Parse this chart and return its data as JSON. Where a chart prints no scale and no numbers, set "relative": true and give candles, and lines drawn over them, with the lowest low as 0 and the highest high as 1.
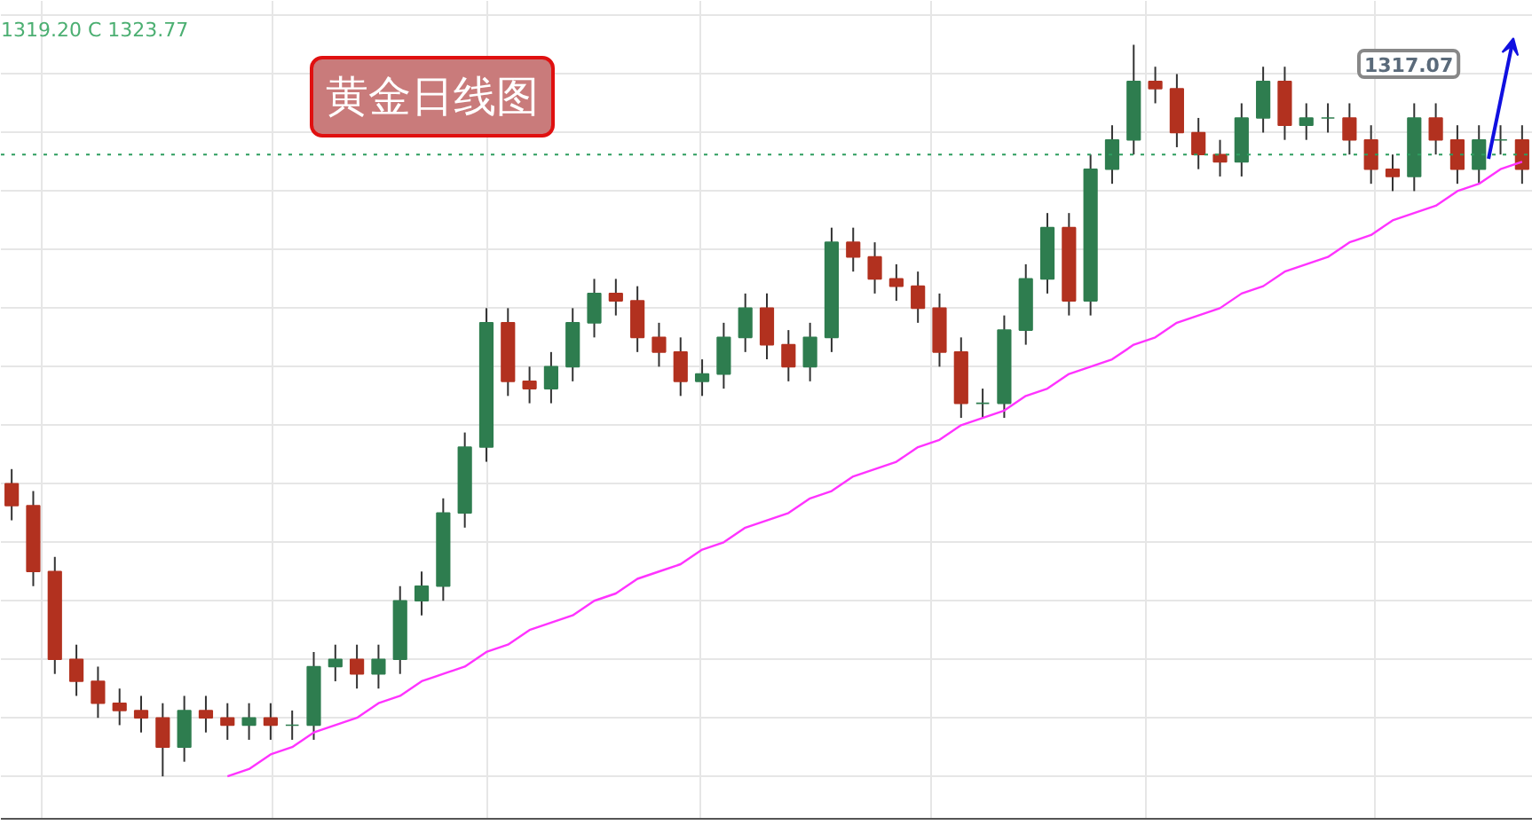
{
  "chart_data": {
    "type": "candlestick",
    "title": "黄金日线图",
    "relative": true,
    "categories": [
      null,
      null,
      null,
      null,
      null,
      null,
      null,
      null,
      null,
      null,
      null,
      null,
      null,
      null,
      null,
      null,
      null,
      null,
      null,
      null,
      null,
      null,
      null,
      null,
      null,
      null,
      null,
      null,
      null,
      null,
      null,
      null,
      null,
      null,
      null,
      null,
      null,
      null,
      null,
      null,
      null,
      null,
      null,
      null,
      null,
      null,
      null,
      null,
      null,
      null,
      null,
      null,
      null,
      null,
      null,
      null,
      null,
      null,
      null,
      null,
      null,
      null,
      null,
      null,
      null,
      null,
      null,
      null,
      null,
      null,
      null
    ],
    "ohlc": [
      [
        0.4,
        0.42,
        0.35,
        0.37
      ],
      [
        0.37,
        0.39,
        0.26,
        0.28
      ],
      [
        0.28,
        0.3,
        0.14,
        0.16
      ],
      [
        0.16,
        0.18,
        0.11,
        0.13
      ],
      [
        0.13,
        0.15,
        0.08,
        0.1
      ],
      [
        0.1,
        0.12,
        0.07,
        0.09
      ],
      [
        0.09,
        0.11,
        0.06,
        0.08
      ],
      [
        0.08,
        0.1,
        0.0,
        0.04
      ],
      [
        0.04,
        0.11,
        0.02,
        0.09
      ],
      [
        0.09,
        0.11,
        0.06,
        0.08
      ],
      [
        0.08,
        0.1,
        0.05,
        0.07
      ],
      [
        0.07,
        0.1,
        0.05,
        0.08
      ],
      [
        0.08,
        0.1,
        0.05,
        0.07
      ],
      [
        0.07,
        0.09,
        0.05,
        0.07
      ],
      [
        0.07,
        0.17,
        0.05,
        0.15
      ],
      [
        0.15,
        0.18,
        0.13,
        0.16
      ],
      [
        0.16,
        0.18,
        0.12,
        0.14
      ],
      [
        0.14,
        0.18,
        0.12,
        0.16
      ],
      [
        0.16,
        0.26,
        0.14,
        0.24
      ],
      [
        0.24,
        0.28,
        0.22,
        0.26
      ],
      [
        0.26,
        0.38,
        0.24,
        0.36
      ],
      [
        0.36,
        0.47,
        0.34,
        0.45
      ],
      [
        0.45,
        0.64,
        0.43,
        0.62
      ],
      [
        0.62,
        0.64,
        0.52,
        0.54
      ],
      [
        0.54,
        0.56,
        0.51,
        0.53
      ],
      [
        0.53,
        0.58,
        0.51,
        0.56
      ],
      [
        0.56,
        0.64,
        0.54,
        0.62
      ],
      [
        0.62,
        0.68,
        0.6,
        0.66
      ],
      [
        0.66,
        0.68,
        0.63,
        0.65
      ],
      [
        0.65,
        0.67,
        0.58,
        0.6
      ],
      [
        0.6,
        0.62,
        0.56,
        0.58
      ],
      [
        0.58,
        0.6,
        0.52,
        0.54
      ],
      [
        0.54,
        0.57,
        0.52,
        0.55
      ],
      [
        0.55,
        0.62,
        0.53,
        0.6
      ],
      [
        0.6,
        0.66,
        0.58,
        0.64
      ],
      [
        0.64,
        0.66,
        0.57,
        0.59
      ],
      [
        0.59,
        0.61,
        0.54,
        0.56
      ],
      [
        0.56,
        0.62,
        0.54,
        0.6
      ],
      [
        0.6,
        0.75,
        0.58,
        0.73
      ],
      [
        0.73,
        0.75,
        0.69,
        0.71
      ],
      [
        0.71,
        0.73,
        0.66,
        0.68
      ],
      [
        0.68,
        0.7,
        0.65,
        0.67
      ],
      [
        0.67,
        0.69,
        0.62,
        0.64
      ],
      [
        0.64,
        0.66,
        0.56,
        0.58
      ],
      [
        0.58,
        0.6,
        0.49,
        0.51
      ],
      [
        0.51,
        0.53,
        0.49,
        0.51
      ],
      [
        0.51,
        0.63,
        0.49,
        0.61
      ],
      [
        0.61,
        0.7,
        0.59,
        0.68
      ],
      [
        0.68,
        0.77,
        0.66,
        0.75
      ],
      [
        0.75,
        0.77,
        0.63,
        0.65
      ],
      [
        0.65,
        0.85,
        0.63,
        0.83
      ],
      [
        0.83,
        0.89,
        0.81,
        0.87
      ],
      [
        0.87,
        1.0,
        0.85,
        0.95
      ],
      [
        0.95,
        0.97,
        0.92,
        0.94
      ],
      [
        0.94,
        0.96,
        0.86,
        0.88
      ],
      [
        0.88,
        0.9,
        0.83,
        0.85
      ],
      [
        0.85,
        0.87,
        0.82,
        0.84
      ],
      [
        0.84,
        0.92,
        0.82,
        0.9
      ],
      [
        0.9,
        0.97,
        0.88,
        0.95
      ],
      [
        0.95,
        0.97,
        0.87,
        0.89
      ],
      [
        0.89,
        0.92,
        0.87,
        0.9
      ],
      [
        0.9,
        0.92,
        0.88,
        0.9
      ],
      [
        0.9,
        0.92,
        0.85,
        0.87
      ],
      [
        0.87,
        0.89,
        0.81,
        0.83
      ],
      [
        0.83,
        0.85,
        0.8,
        0.82
      ],
      [
        0.82,
        0.92,
        0.8,
        0.9
      ],
      [
        0.9,
        0.92,
        0.85,
        0.87
      ],
      [
        0.87,
        0.89,
        0.81,
        0.83
      ],
      [
        0.83,
        0.89,
        0.81,
        0.87
      ],
      [
        0.87,
        0.89,
        0.85,
        0.87
      ],
      [
        0.87,
        0.89,
        0.81,
        0.83
      ]
    ],
    "colors": [
      "#b2311f",
      "#b2311f",
      "#b2311f",
      "#b2311f",
      "#b2311f",
      "#b2311f",
      "#b2311f",
      "#b2311f",
      "#2e7d4f",
      "#b2311f",
      "#b2311f",
      "#2e7d4f",
      "#b2311f",
      "#2e7d4f",
      "#2e7d4f",
      "#2e7d4f",
      "#b2311f",
      "#2e7d4f",
      "#2e7d4f",
      "#2e7d4f",
      "#2e7d4f",
      "#2e7d4f",
      "#2e7d4f",
      "#b2311f",
      "#b2311f",
      "#2e7d4f",
      "#2e7d4f",
      "#2e7d4f",
      "#b2311f",
      "#b2311f",
      "#b2311f",
      "#b2311f",
      "#2e7d4f",
      "#2e7d4f",
      "#2e7d4f",
      "#b2311f",
      "#b2311f",
      "#2e7d4f",
      "#2e7d4f",
      "#b2311f",
      "#b2311f",
      "#b2311f",
      "#b2311f",
      "#b2311f",
      "#b2311f",
      "#2e7d4f",
      "#2e7d4f",
      "#2e7d4f",
      "#2e7d4f",
      "#b2311f",
      "#2e7d4f",
      "#2e7d4f",
      "#2e7d4f",
      "#b2311f",
      "#b2311f",
      "#b2311f",
      "#b2311f",
      "#2e7d4f",
      "#2e7d4f",
      "#b2311f",
      "#2e7d4f",
      "#2e7d4f",
      "#b2311f",
      "#b2311f",
      "#b2311f",
      "#2e7d4f",
      "#b2311f",
      "#b2311f",
      "#2e7d4f",
      "#2e7d4f",
      "#b2311f"
    ],
    "series": [
      {
        "type": "line",
        "values": [
          null,
          null,
          null,
          null,
          null,
          null,
          null,
          null,
          null,
          null,
          0.0,
          0.01,
          0.03,
          0.04,
          0.06,
          0.07,
          0.08,
          0.1,
          0.11,
          0.13,
          0.14,
          0.15,
          0.17,
          0.18,
          0.2,
          0.21,
          0.22,
          0.24,
          0.25,
          0.27,
          0.28,
          0.29,
          0.31,
          0.32,
          0.34,
          0.35,
          0.36,
          0.38,
          0.39,
          0.41,
          0.42,
          0.43,
          0.45,
          0.46,
          0.48,
          0.49,
          0.5,
          0.52,
          0.53,
          0.55,
          0.56,
          0.57,
          0.59,
          0.6,
          0.62,
          0.63,
          0.64,
          0.66,
          0.67,
          0.69,
          0.7,
          0.71,
          0.73,
          0.74,
          0.76,
          0.77,
          0.78,
          0.8,
          0.81,
          0.83,
          0.84
        ],
        "color": "#ff33ff"
      }
    ],
    "ref_lines": [
      {
        "axis": "y",
        "value": 0.85,
        "color": "#2e9d5f",
        "line_style": "dotted"
      }
    ],
    "grid": true,
    "annotations": [
      "1319.20 C 1323.77",
      "1317.07"
    ]
  }
}
